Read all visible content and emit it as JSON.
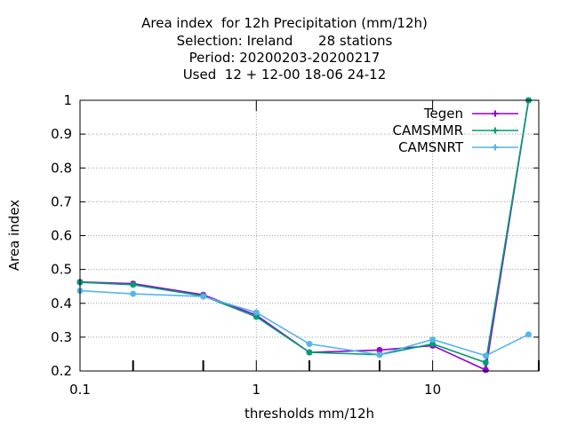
{
  "chart_data": {
    "type": "line",
    "title_lines": [
      "Area index  for 12h Precipitation (mm/12h)",
      "Selection: Ireland      28 stations",
      "Period: 20200203-20200217",
      "Used  12 + 12-00 18-06 24-12"
    ],
    "xlabel": "thresholds mm/12h",
    "ylabel": "Area index",
    "x_scale": "log",
    "xlim": [
      0.1,
      40
    ],
    "ylim": [
      0.2,
      1.0
    ],
    "x_ticks": [
      0.1,
      1,
      10
    ],
    "x_tick_labels": [
      "0.1",
      "1",
      "10"
    ],
    "x_minor_ticks": [
      0.2,
      0.5,
      2,
      5,
      20,
      40
    ],
    "y_ticks": [
      0.2,
      0.3,
      0.4,
      0.5,
      0.6,
      0.7,
      0.8,
      0.9,
      1.0
    ],
    "y_tick_labels": [
      "0.2",
      "0.3",
      "0.4",
      "0.5",
      "0.6",
      "0.7",
      "0.8",
      "0.9",
      "1"
    ],
    "grid": true,
    "legend_position": "top-right",
    "x": [
      0.1,
      0.2,
      0.5,
      1,
      2,
      5,
      10,
      20,
      35
    ],
    "series": [
      {
        "name": "Tegen",
        "color": "#9400d3",
        "values": [
          0.463,
          0.458,
          0.425,
          0.365,
          0.255,
          0.262,
          0.275,
          0.203,
          1.0
        ]
      },
      {
        "name": "CAMSMMR",
        "color": "#009e73",
        "values": [
          0.462,
          0.455,
          0.422,
          0.36,
          0.255,
          0.248,
          0.28,
          0.225,
          1.0
        ]
      },
      {
        "name": "CAMSNRT",
        "color": "#56b4e9",
        "values": [
          0.437,
          0.428,
          0.42,
          0.373,
          0.28,
          0.248,
          0.293,
          0.245,
          0.308
        ]
      }
    ]
  }
}
